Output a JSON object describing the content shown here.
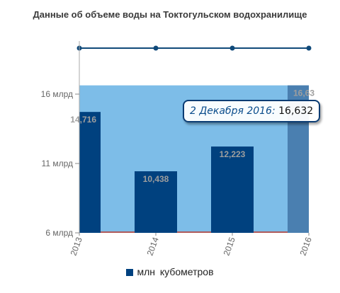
{
  "chart_data": {
    "type": "bar",
    "title": "Данные об объеме воды на Токтогульском водохранилище",
    "x": [
      "2013",
      "2014",
      "2015",
      "2016"
    ],
    "series": [
      {
        "name": "млн кубометров",
        "color": "#00417f",
        "values": [
          14716,
          10438,
          12223,
          16632
        ],
        "labels": [
          "14,716",
          "10,438",
          "12,223",
          "16,63"
        ]
      }
    ],
    "highlight_last_color": "#4a7fb0",
    "area_fill_color": "#7dbde8",
    "area_value": 16632,
    "top_line_color": "#104a7a",
    "y_ticks": [
      {
        "value": 6000,
        "label": "6 млрд"
      },
      {
        "value": 11000,
        "label": "11 млрд"
      },
      {
        "value": 16000,
        "label": "16 млрд"
      }
    ],
    "ylim": [
      6000,
      16632
    ],
    "legend_position": "bottom",
    "grid": false,
    "tooltip": {
      "date": "2 Декабря 2016:",
      "value": "16,632"
    }
  }
}
